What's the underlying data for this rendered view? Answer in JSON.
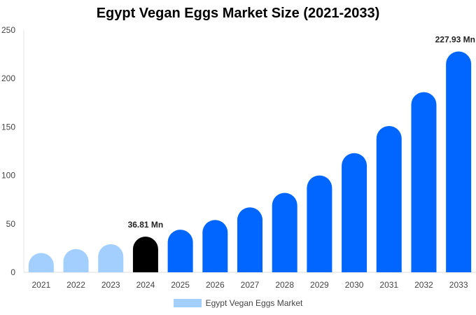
{
  "chart_data": {
    "type": "bar",
    "title": "Egypt Vegan Eggs Market Size (2021-2033)",
    "categories": [
      "2021",
      "2022",
      "2023",
      "2024",
      "2025",
      "2026",
      "2027",
      "2028",
      "2029",
      "2030",
      "2031",
      "2032",
      "2033"
    ],
    "series": [
      {
        "name": "Egypt Vegan Eggs Market",
        "values": [
          20,
          24,
          29,
          36.81,
          44,
          54,
          67,
          82,
          100,
          123,
          151,
          186,
          227.93
        ]
      }
    ],
    "ylim": [
      0,
      250
    ],
    "yticks": [
      0,
      50,
      100,
      150,
      200,
      250
    ],
    "data_labels": [
      {
        "category": "2024",
        "text": "36.81 Mn"
      },
      {
        "category": "2033",
        "text": "227.93 Mn"
      }
    ],
    "colors": {
      "historical": "#a3cfff",
      "current": "#000000",
      "forecast": "#0066ff"
    },
    "legend_position": "bottom"
  }
}
